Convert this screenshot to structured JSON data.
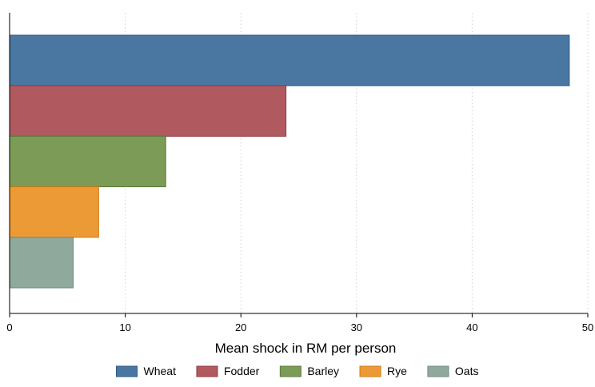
{
  "chart_data": {
    "type": "bar",
    "orientation": "horizontal",
    "categories": [
      "Wheat",
      "Fodder",
      "Barley",
      "Rye",
      "Oats"
    ],
    "values": [
      48.4,
      23.9,
      13.5,
      7.7,
      5.5
    ],
    "colors": [
      "#4a77a2",
      "#b05a60",
      "#7c9b57",
      "#ec9a35",
      "#8fa99c"
    ],
    "edge_colors": [
      "#2f5a86",
      "#8e3c44",
      "#5b7a3a",
      "#cf7a14",
      "#6f8c80"
    ],
    "title": "",
    "xlabel": "Mean shock in RM per person",
    "ylabel": "",
    "xlim": [
      0,
      50
    ],
    "xticks": [
      0,
      10,
      20,
      30,
      40,
      50
    ],
    "xtick_labels": [
      "0",
      "10",
      "20",
      "30",
      "40",
      "50"
    ],
    "grid": "vertical dotted",
    "legend": {
      "placement": "bottom",
      "entries": [
        "Wheat",
        "Fodder",
        "Barley",
        "Rye",
        "Oats"
      ]
    }
  }
}
